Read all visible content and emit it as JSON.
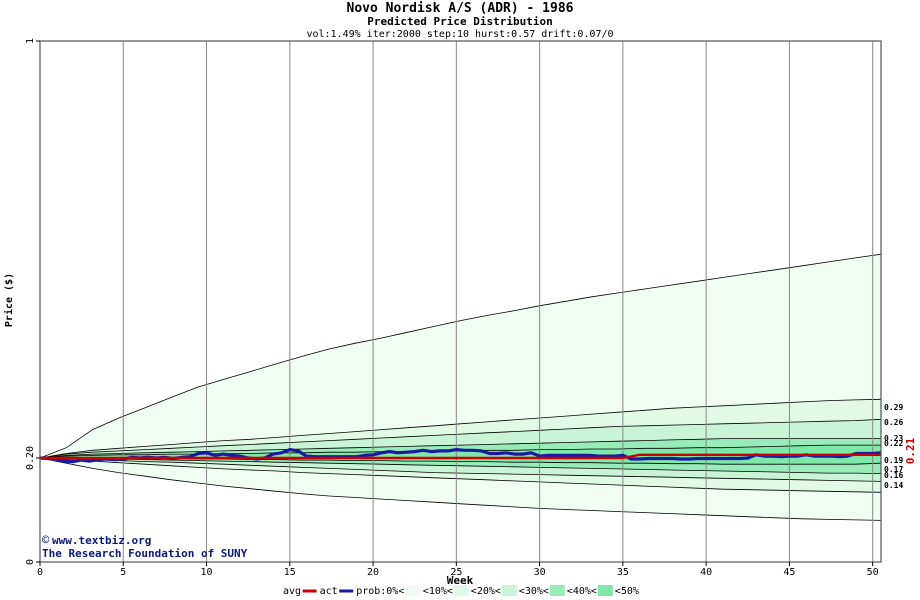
{
  "chart_data": {
    "type": "area",
    "title": "Novo Nordisk A/S (ADR) - 1986",
    "subtitle": "Predicted Price Distribution",
    "params": "vol:1.49% iter:2000 step:10 hurst:0.57 drift:0.07/0",
    "xlabel": "Week",
    "ylabel": "Price ($)",
    "xlim": [
      0,
      50.5
    ],
    "ylim": [
      0,
      1
    ],
    "x_ticks": [
      0,
      5,
      10,
      15,
      20,
      25,
      30,
      35,
      40,
      45,
      50
    ],
    "y_tick_labels": [
      {
        "value": 0,
        "label": "0"
      },
      {
        "value": 0.2,
        "label": "0.20"
      },
      {
        "value": 1,
        "label": "1"
      }
    ],
    "grid": "vertical",
    "start_price": 0.2,
    "band_end_values": [
      {
        "value": 0.29,
        "label": "0.29"
      },
      {
        "value": 0.26,
        "label": "0.26"
      },
      {
        "value": 0.23,
        "label": "0.23"
      },
      {
        "value": 0.22,
        "label": "0.22"
      },
      {
        "value": 0.19,
        "label": "0.19"
      },
      {
        "value": 0.17,
        "label": "0.17"
      },
      {
        "value": 0.16,
        "label": "0.16"
      },
      {
        "value": 0.14,
        "label": "0.14"
      }
    ],
    "current_price_label": "0.21",
    "bands": [
      {
        "name": "<10%",
        "color": "#effdf2",
        "upper": [
          0.2,
          0.216,
          0.244,
          0.262,
          0.278,
          0.294,
          0.31,
          0.322,
          0.334,
          0.346,
          0.358,
          0.369,
          0.378,
          0.386,
          0.395,
          0.404,
          0.413,
          0.421,
          0.428,
          0.436,
          0.443,
          0.45,
          0.456,
          0.462,
          0.468,
          0.474,
          0.48,
          0.486,
          0.492,
          0.498,
          0.504,
          0.51,
          0.516
        ],
        "lower": [
          0.2,
          0.19,
          0.18,
          0.172,
          0.165,
          0.158,
          0.152,
          0.146,
          0.141,
          0.136,
          0.131,
          0.127,
          0.124,
          0.121,
          0.118,
          0.115,
          0.112,
          0.109,
          0.106,
          0.103,
          0.101,
          0.099,
          0.097,
          0.095,
          0.093,
          0.091,
          0.089,
          0.087,
          0.085,
          0.083,
          0.082,
          0.081,
          0.08
        ]
      },
      {
        "name": "<20%",
        "color": "#e0fae6",
        "upper": [
          0.2,
          0.207,
          0.212,
          0.215,
          0.218,
          0.221,
          0.224,
          0.227,
          0.229,
          0.232,
          0.235,
          0.238,
          0.241,
          0.244,
          0.247,
          0.25,
          0.253,
          0.256,
          0.259,
          0.262,
          0.265,
          0.268,
          0.271,
          0.274,
          0.277,
          0.279,
          0.281,
          0.283,
          0.285,
          0.287,
          0.289,
          0.29,
          0.291
        ],
        "lower": [
          0.2,
          0.197,
          0.194,
          0.191,
          0.188,
          0.185,
          0.182,
          0.179,
          0.177,
          0.175,
          0.172,
          0.17,
          0.168,
          0.166,
          0.164,
          0.162,
          0.16,
          0.158,
          0.156,
          0.154,
          0.152,
          0.15,
          0.148,
          0.146,
          0.144,
          0.142,
          0.14,
          0.139,
          0.138,
          0.137,
          0.136,
          0.135,
          0.134
        ]
      },
      {
        "name": "<30%",
        "color": "#c9f5d6",
        "upper": [
          0.2,
          0.206,
          0.209,
          0.211,
          0.213,
          0.215,
          0.217,
          0.219,
          0.221,
          0.223,
          0.225,
          0.227,
          0.229,
          0.231,
          0.233,
          0.235,
          0.237,
          0.239,
          0.241,
          0.243,
          0.245,
          0.247,
          0.249,
          0.25,
          0.251,
          0.252,
          0.253,
          0.254,
          0.255,
          0.256,
          0.257,
          0.258,
          0.26
        ],
        "lower": [
          0.2,
          0.199,
          0.197,
          0.195,
          0.193,
          0.192,
          0.19,
          0.188,
          0.186,
          0.184,
          0.182,
          0.18,
          0.178,
          0.176,
          0.174,
          0.172,
          0.171,
          0.17,
          0.169,
          0.168,
          0.167,
          0.166,
          0.165,
          0.164,
          0.163,
          0.162,
          0.161,
          0.16,
          0.159,
          0.158,
          0.157,
          0.156,
          0.155
        ]
      },
      {
        "name": "<40%",
        "color": "#99ecb8",
        "upper": [
          0.2,
          0.204,
          0.206,
          0.207,
          0.208,
          0.209,
          0.21,
          0.211,
          0.212,
          0.213,
          0.214,
          0.215,
          0.216,
          0.217,
          0.218,
          0.219,
          0.22,
          0.221,
          0.222,
          0.223,
          0.224,
          0.225,
          0.226,
          0.227,
          0.228,
          0.229,
          0.23,
          0.23,
          0.23,
          0.23,
          0.23,
          0.23,
          0.23
        ],
        "lower": [
          0.2,
          0.2,
          0.199,
          0.198,
          0.197,
          0.196,
          0.195,
          0.194,
          0.193,
          0.192,
          0.191,
          0.19,
          0.189,
          0.188,
          0.187,
          0.186,
          0.185,
          0.184,
          0.183,
          0.182,
          0.181,
          0.18,
          0.179,
          0.178,
          0.177,
          0.176,
          0.175,
          0.174,
          0.173,
          0.172,
          0.171,
          0.171,
          0.17
        ]
      },
      {
        "name": "<50%",
        "color": "#7ee8a8",
        "upper": [
          0.2,
          0.203,
          0.204,
          0.205,
          0.205,
          0.206,
          0.206,
          0.207,
          0.207,
          0.208,
          0.208,
          0.209,
          0.209,
          0.21,
          0.21,
          0.211,
          0.211,
          0.212,
          0.212,
          0.213,
          0.213,
          0.214,
          0.214,
          0.215,
          0.215,
          0.216,
          0.216,
          0.217,
          0.218,
          0.219,
          0.22,
          0.22,
          0.22
        ],
        "lower": [
          0.2,
          0.201,
          0.2,
          0.2,
          0.199,
          0.199,
          0.198,
          0.198,
          0.197,
          0.197,
          0.196,
          0.196,
          0.195,
          0.195,
          0.194,
          0.194,
          0.193,
          0.193,
          0.192,
          0.192,
          0.191,
          0.191,
          0.19,
          0.19,
          0.189,
          0.189,
          0.188,
          0.188,
          0.188,
          0.188,
          0.188,
          0.188,
          0.19
        ]
      }
    ],
    "series": [
      {
        "name": "act",
        "color": "#1a1aa0",
        "x": [
          0,
          0.5,
          1,
          1.5,
          2,
          2.5,
          3,
          3.5,
          4,
          4.5,
          5,
          5.5,
          6,
          6.5,
          7,
          7.5,
          8,
          8.5,
          9,
          9.5,
          10,
          10.5,
          11,
          11.5,
          12,
          12.5,
          13,
          13.5,
          14,
          14.5,
          15,
          15.5,
          16,
          16.5,
          17,
          17.5,
          18,
          18.5,
          19,
          19.5,
          20,
          20.5,
          21,
          21.5,
          22,
          22.5,
          23,
          23.5,
          24,
          24.5,
          25,
          25.5,
          26,
          26.5,
          27,
          27.5,
          28,
          28.5,
          29,
          29.5,
          30,
          30.5,
          31,
          31.5,
          32,
          32.5,
          33,
          33.5,
          34,
          34.5,
          35,
          35.5,
          36,
          36.5,
          37,
          37.5,
          38,
          38.5,
          39,
          39.5,
          40,
          40.5,
          41,
          41.5,
          42,
          42.5,
          43,
          43.5,
          44,
          44.5,
          45,
          45.5,
          46,
          46.5,
          47,
          47.5,
          48,
          48.5,
          49,
          49.5,
          50,
          50.5
        ],
        "y": [
          0.2,
          0.199,
          0.197,
          0.194,
          0.193,
          0.196,
          0.194,
          0.197,
          0.198,
          0.197,
          0.198,
          0.201,
          0.2,
          0.201,
          0.2,
          0.201,
          0.199,
          0.201,
          0.202,
          0.207,
          0.208,
          0.204,
          0.206,
          0.204,
          0.203,
          0.2,
          0.198,
          0.2,
          0.206,
          0.208,
          0.213,
          0.211,
          0.203,
          0.202,
          0.202,
          0.202,
          0.202,
          0.202,
          0.202,
          0.204,
          0.205,
          0.208,
          0.21,
          0.208,
          0.209,
          0.21,
          0.212,
          0.21,
          0.211,
          0.211,
          0.213,
          0.212,
          0.212,
          0.211,
          0.207,
          0.207,
          0.208,
          0.206,
          0.206,
          0.208,
          0.203,
          0.204,
          0.204,
          0.204,
          0.204,
          0.204,
          0.204,
          0.203,
          0.203,
          0.203,
          0.204,
          0.198,
          0.198,
          0.199,
          0.199,
          0.199,
          0.199,
          0.198,
          0.198,
          0.199,
          0.199,
          0.199,
          0.199,
          0.199,
          0.199,
          0.2,
          0.205,
          0.203,
          0.203,
          0.202,
          0.203,
          0.203,
          0.205,
          0.203,
          0.203,
          0.203,
          0.202,
          0.203,
          0.207,
          0.207,
          0.207,
          0.208
        ]
      },
      {
        "name": "avg",
        "color": "#cc0000",
        "x": [
          0,
          35,
          36,
          50.5
        ],
        "y": [
          0.2,
          0.2,
          0.205,
          0.205
        ]
      }
    ],
    "legend": [
      {
        "label": "avg",
        "type": "line",
        "color": "#cc0000"
      },
      {
        "label": "act",
        "type": "line",
        "color": "#1a1aa0"
      },
      {
        "label": "prob:0%<",
        "type": "text"
      },
      {
        "label": "<10%<",
        "type": "swatch",
        "color": "#effdf2"
      },
      {
        "label": "<20%<",
        "type": "swatch",
        "color": "#e0fae6"
      },
      {
        "label": "<30%<",
        "type": "swatch",
        "color": "#c9f5d6"
      },
      {
        "label": "<40%<",
        "type": "swatch",
        "color": "#99ecb8"
      },
      {
        "label": "<50%",
        "type": "swatch",
        "color": "#7ee8a8"
      }
    ],
    "legend_position": "bottom"
  },
  "credit": {
    "site": "www.textbiz.org",
    "org": "The Research Foundation of SUNY"
  },
  "colors": {
    "avg_line": "#cc0000",
    "act_line": "#1a1aa0",
    "credit_text": "#0a1a7a",
    "current_price_label": "#cc0000",
    "gridline": "#888888"
  }
}
